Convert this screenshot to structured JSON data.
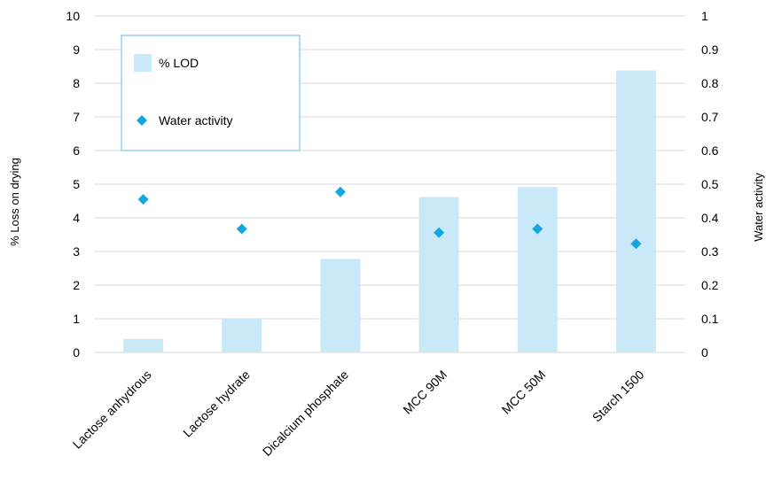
{
  "chart_data": {
    "type": "bar",
    "categories": [
      "Lactose anhydrous",
      "Lactose hydrate",
      "Dicalcium phosphate",
      "MCC 90M",
      "MCC 50M",
      "Starch 1500"
    ],
    "series": [
      {
        "name": "% LOD",
        "type": "bar",
        "axis": "left",
        "values": [
          0.4,
          1.0,
          2.78,
          4.62,
          4.92,
          8.38
        ]
      },
      {
        "name": "Water activity",
        "type": "scatter",
        "axis": "right",
        "values": [
          0.455,
          0.367,
          0.477,
          0.356,
          0.367,
          0.323
        ]
      }
    ],
    "ylabel": "% Loss on drying",
    "y2label": "Water activity",
    "ylim": [
      0,
      10
    ],
    "y2lim": [
      0,
      1
    ],
    "yticks": [
      "0",
      "1",
      "2",
      "3",
      "4",
      "5",
      "6",
      "7",
      "8",
      "9",
      "10"
    ],
    "y2ticks": [
      "0",
      "0.1",
      "0.2",
      "0.3",
      "0.4",
      "0.5",
      "0.6",
      "0.7",
      "0.8",
      "0.9",
      "1"
    ],
    "grid": true,
    "legend_position": "top-left",
    "colors": {
      "bar": "#c9e9f8",
      "marker": "#12a7de",
      "grid": "#d9d9d9",
      "legend_border": "#5bbde4"
    }
  }
}
